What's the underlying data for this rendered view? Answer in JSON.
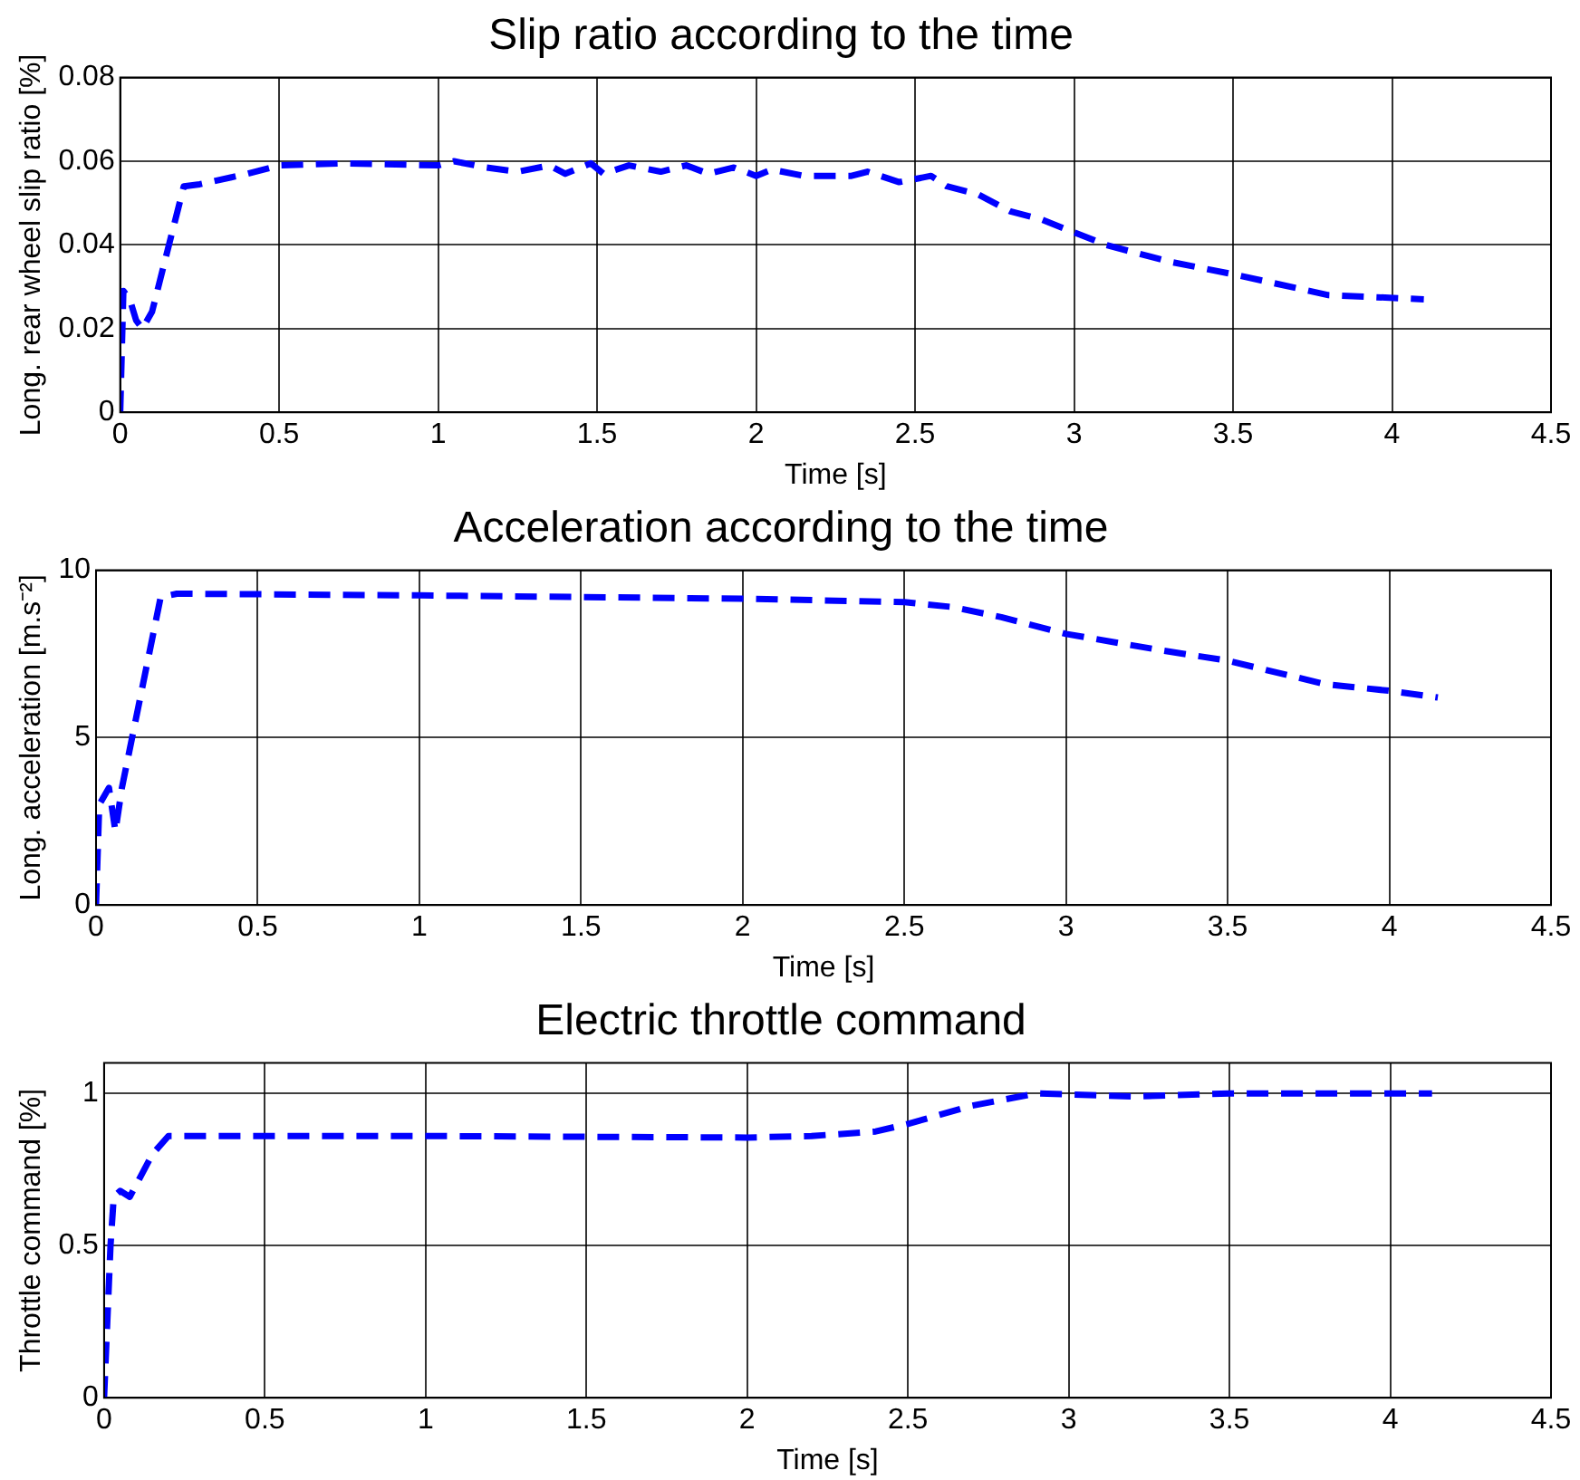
{
  "chart_data": [
    {
      "type": "line",
      "title": "Slip ratio according to the time",
      "xlabel": "Time [s]",
      "ylabel": "Long. rear wheel slip ratio [%]",
      "xlim": [
        0,
        4.5
      ],
      "xticks": [
        0,
        0.5,
        1,
        1.5,
        2,
        2.5,
        3,
        3.5,
        4,
        4.5
      ],
      "ylim": [
        0,
        0.08
      ],
      "yticks": [
        0,
        0.02,
        0.04,
        0.06,
        0.08
      ],
      "grid": true,
      "line_style": "dashed",
      "marker": "none",
      "series": [
        {
          "color": "#0000ff",
          "x": [
            0,
            0.01,
            0.03,
            0.05,
            0.07,
            0.1,
            0.2,
            0.25,
            0.4,
            0.5,
            0.7,
            1.0,
            1.05,
            1.15,
            1.25,
            1.35,
            1.4,
            1.48,
            1.52,
            1.6,
            1.7,
            1.78,
            1.85,
            1.93,
            2.0,
            2.05,
            2.15,
            2.3,
            2.35,
            2.45,
            2.55,
            2.6,
            2.7,
            2.8,
            2.9,
            3.0,
            3.1,
            3.3,
            3.5,
            3.8,
            4.1
          ],
          "values": [
            0,
            0.029,
            0.027,
            0.022,
            0.02,
            0.024,
            0.054,
            0.0545,
            0.057,
            0.059,
            0.0595,
            0.059,
            0.06,
            0.0585,
            0.0575,
            0.059,
            0.057,
            0.0595,
            0.057,
            0.059,
            0.0575,
            0.059,
            0.057,
            0.0585,
            0.0565,
            0.058,
            0.0565,
            0.0565,
            0.0575,
            0.055,
            0.0565,
            0.054,
            0.052,
            0.048,
            0.046,
            0.043,
            0.04,
            0.036,
            0.033,
            0.028,
            0.027
          ]
        }
      ]
    },
    {
      "type": "line",
      "title": "Acceleration according to the time",
      "xlabel": "Time [s]",
      "ylabel": "Long. acceleration [m.s⁻²]",
      "xlim": [
        0,
        4.5
      ],
      "xticks": [
        0,
        0.5,
        1,
        1.5,
        2,
        2.5,
        3,
        3.5,
        4,
        4.5
      ],
      "ylim": [
        0,
        10
      ],
      "yticks": [
        0,
        5,
        10
      ],
      "grid": true,
      "line_style": "dashed",
      "marker": "none",
      "series": [
        {
          "color": "#0000ff",
          "x": [
            0,
            0.01,
            0.04,
            0.06,
            0.08,
            0.2,
            0.25,
            1,
            1.5,
            2,
            2.5,
            2.65,
            2.8,
            3,
            3.3,
            3.5,
            3.8,
            4.0,
            4.15
          ],
          "values": [
            0,
            3.0,
            3.5,
            2.2,
            3.5,
            9.2,
            9.3,
            9.25,
            9.2,
            9.15,
            9.05,
            8.9,
            8.6,
            8.1,
            7.6,
            7.3,
            6.6,
            6.4,
            6.2
          ]
        }
      ]
    },
    {
      "type": "line",
      "title": "Electric throttle command",
      "xlabel": "Time [s]",
      "ylabel": "Throttle command [%]",
      "xlim": [
        0,
        4.5
      ],
      "xticks": [
        0,
        0.5,
        1,
        1.5,
        2,
        2.5,
        3,
        3.5,
        4,
        4.5
      ],
      "ylim": [
        0,
        1.1
      ],
      "yticks": [
        0,
        0.5,
        1
      ],
      "grid": true,
      "line_style": "dashed",
      "marker": "none",
      "series": [
        {
          "color": "#0000ff",
          "x": [
            0,
            0.02,
            0.03,
            0.05,
            0.08,
            0.15,
            0.2,
            1,
            2,
            2.2,
            2.4,
            2.5,
            2.7,
            2.9,
            3.2,
            3.5,
            4.13
          ],
          "values": [
            0,
            0.5,
            0.66,
            0.68,
            0.66,
            0.8,
            0.86,
            0.86,
            0.855,
            0.86,
            0.875,
            0.9,
            0.96,
            1.0,
            0.99,
            1.0,
            1.0
          ]
        }
      ]
    }
  ]
}
